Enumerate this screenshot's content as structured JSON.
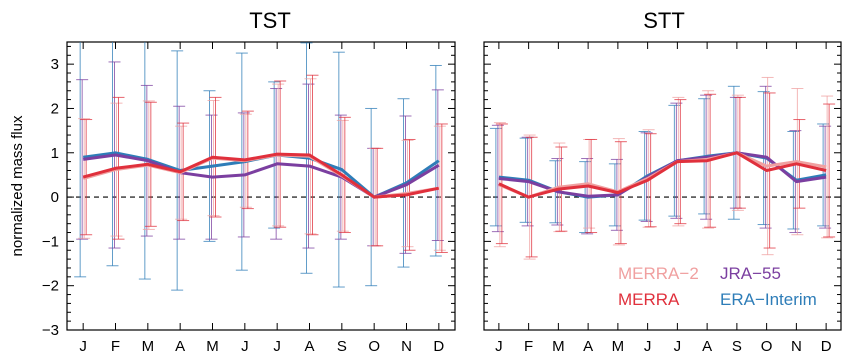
{
  "ylabel": "normalized mass flux",
  "colors": {
    "MERRA-2": "#f0a0a0",
    "MERRA": "#e0303c",
    "JRA-55": "#7b3fa0",
    "ERA-Interim": "#2e7db8"
  },
  "chart_data": [
    {
      "type": "line",
      "title": "TST",
      "xlabel": "",
      "ylabel": "normalized mass flux",
      "ylim": [
        -3,
        3.5
      ],
      "yticks": [
        -3,
        -2,
        -1,
        0,
        1,
        2,
        3
      ],
      "ytick_labels": [
        "−3",
        "−2",
        "−1",
        "0",
        "1",
        "2",
        "3"
      ],
      "categories": [
        "J",
        "F",
        "M",
        "A",
        "M",
        "J",
        "J",
        "A",
        "S",
        "O",
        "N",
        "D"
      ],
      "zero_line": "dashed",
      "series": [
        {
          "name": "MERRA-2",
          "values": [
            0.42,
            0.62,
            0.72,
            0.55,
            0.88,
            0.82,
            0.95,
            0.92,
            0.48,
            0.0,
            0.08,
            0.2
          ],
          "err": [
            1.35,
            1.5,
            1.45,
            1.05,
            1.3,
            1.05,
            1.6,
            1.75,
            1.25,
            1.1,
            1.2,
            1.4
          ]
        },
        {
          "name": "MERRA",
          "values": [
            0.45,
            0.65,
            0.74,
            0.57,
            0.9,
            0.84,
            0.97,
            0.95,
            0.5,
            0.0,
            0.05,
            0.2
          ],
          "err": [
            1.3,
            1.6,
            1.4,
            1.1,
            1.35,
            1.1,
            1.65,
            1.8,
            1.3,
            1.1,
            1.25,
            1.45
          ]
        },
        {
          "name": "JRA-55",
          "values": [
            0.85,
            0.95,
            0.82,
            0.55,
            0.45,
            0.5,
            0.75,
            0.7,
            0.45,
            0.0,
            0.28,
            0.72
          ],
          "err": [
            1.8,
            2.1,
            1.7,
            1.5,
            1.4,
            1.4,
            1.7,
            1.85,
            1.4,
            1.1,
            1.55,
            1.7
          ]
        },
        {
          "name": "ERA-Interim",
          "values": [
            0.9,
            1.0,
            0.85,
            0.6,
            0.7,
            0.8,
            0.95,
            0.88,
            0.62,
            0.0,
            0.32,
            0.82
          ],
          "err": [
            2.7,
            2.55,
            2.7,
            2.7,
            1.7,
            2.45,
            1.65,
            2.6,
            2.65,
            2.0,
            1.9,
            2.15
          ]
        }
      ]
    },
    {
      "type": "line",
      "title": "STT",
      "xlabel": "",
      "ylabel": "",
      "ylim": [
        -3,
        3.5
      ],
      "yticks": [
        -3,
        -2,
        -1,
        0,
        1,
        2,
        3
      ],
      "categories": [
        "J",
        "F",
        "M",
        "A",
        "M",
        "J",
        "J",
        "A",
        "S",
        "O",
        "N",
        "D"
      ],
      "zero_line": "dashed",
      "legend": "lower-right",
      "series": [
        {
          "name": "MERRA-2",
          "values": [
            0.28,
            0.0,
            0.22,
            0.3,
            0.12,
            0.42,
            0.8,
            0.85,
            1.0,
            0.7,
            0.8,
            0.68
          ],
          "err": [
            1.4,
            1.4,
            1.0,
            1.0,
            1.2,
            1.1,
            1.45,
            1.55,
            1.3,
            2.0,
            1.65,
            1.6
          ]
        },
        {
          "name": "MERRA",
          "values": [
            0.3,
            0.0,
            0.18,
            0.25,
            0.1,
            0.38,
            0.8,
            0.82,
            1.0,
            0.6,
            0.75,
            0.6
          ],
          "err": [
            1.35,
            1.35,
            0.95,
            1.05,
            1.15,
            1.05,
            1.4,
            1.5,
            1.25,
            1.75,
            1.0,
            1.5
          ]
        },
        {
          "name": "JRA-55",
          "values": [
            0.42,
            0.35,
            0.12,
            0.02,
            0.05,
            0.45,
            0.82,
            0.9,
            1.0,
            0.9,
            0.35,
            0.45
          ],
          "err": [
            1.2,
            1.0,
            0.75,
            0.85,
            0.8,
            1.0,
            1.3,
            1.4,
            1.25,
            1.6,
            1.15,
            1.15
          ]
        },
        {
          "name": "ERA-Interim",
          "values": [
            0.45,
            0.38,
            0.12,
            0.0,
            0.05,
            0.48,
            0.82,
            0.92,
            1.0,
            0.88,
            0.38,
            0.5
          ],
          "err": [
            1.1,
            0.95,
            0.7,
            0.8,
            0.7,
            1.0,
            1.25,
            1.3,
            1.5,
            1.5,
            1.1,
            1.15
          ]
        }
      ]
    }
  ]
}
